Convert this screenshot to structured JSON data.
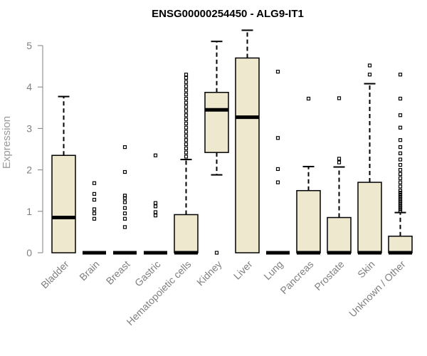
{
  "chart_data": {
    "type": "boxplot",
    "title": "ENSG00000254450 - ALG9-IT1",
    "xlabel": "",
    "ylabel": "Expression",
    "ylim": [
      0,
      5.5
    ],
    "yticks": [
      0,
      1,
      2,
      3,
      4,
      5
    ],
    "grid": false,
    "legend": "none",
    "box_color": "#EEE8CF",
    "categories": [
      "Bladder",
      "Brain",
      "Breast",
      "Gastric",
      "Hematopoietic cells",
      "Kidney",
      "Liver",
      "Lung",
      "Pancreas",
      "Prostate",
      "Skin",
      "Unknown / Other"
    ],
    "boxes": [
      {
        "min": 0,
        "q1": 0,
        "median": 0.85,
        "q3": 2.35,
        "max": 3.77,
        "outliers": []
      },
      {
        "min": 0,
        "q1": 0,
        "median": 0,
        "q3": 0,
        "max": 0,
        "outliers": [
          0.82,
          0.95,
          1.05,
          1.28,
          1.42,
          1.68
        ]
      },
      {
        "min": 0,
        "q1": 0,
        "median": 0,
        "q3": 0,
        "max": 0,
        "outliers": [
          0.62,
          0.82,
          0.95,
          1.08,
          1.22,
          1.32,
          1.38,
          1.95,
          2.55
        ]
      },
      {
        "min": 0,
        "q1": 0,
        "median": 0,
        "q3": 0,
        "max": 0,
        "outliers": [
          0.9,
          0.98,
          1.12,
          1.2,
          2.35
        ]
      },
      {
        "min": 0,
        "q1": 0,
        "median": 0,
        "q3": 0.92,
        "max": 2.25,
        "outliers": [
          2.32,
          2.42,
          2.52,
          2.62,
          2.72,
          2.82,
          2.92,
          3.02,
          3.12,
          3.22,
          3.32,
          3.42,
          3.52,
          3.62,
          3.72,
          3.82,
          3.92,
          4.02,
          4.12,
          4.22,
          4.3
        ]
      },
      {
        "min": 1.88,
        "q1": 2.42,
        "median": 3.45,
        "q3": 3.87,
        "max": 5.1,
        "outliers": [
          0
        ]
      },
      {
        "min": 0,
        "q1": 0,
        "median": 3.27,
        "q3": 4.7,
        "max": 5.37,
        "outliers": []
      },
      {
        "min": 0,
        "q1": 0,
        "median": 0,
        "q3": 0,
        "max": 0,
        "outliers": [
          1.7,
          2.02,
          2.77,
          4.37
        ]
      },
      {
        "min": 0,
        "q1": 0,
        "median": 0,
        "q3": 1.5,
        "max": 2.08,
        "outliers": [
          3.72
        ]
      },
      {
        "min": 0,
        "q1": 0,
        "median": 0,
        "q3": 0.85,
        "max": 2.07,
        "outliers": [
          2.18,
          2.27,
          3.73
        ]
      },
      {
        "min": 0,
        "q1": 0,
        "median": 0,
        "q3": 1.7,
        "max": 4.08,
        "outliers": [
          4.3,
          4.52
        ]
      },
      {
        "min": 0,
        "q1": 0,
        "median": 0,
        "q3": 0.4,
        "max": 0.97,
        "outliers": [
          1.0,
          1.05,
          1.1,
          1.15,
          1.2,
          1.25,
          1.3,
          1.35,
          1.4,
          1.45,
          1.5,
          1.6,
          1.7,
          1.8,
          1.9,
          2.0,
          2.12,
          2.25,
          2.4,
          2.55,
          2.72,
          3.02,
          3.32,
          3.72,
          4.3
        ]
      }
    ]
  }
}
